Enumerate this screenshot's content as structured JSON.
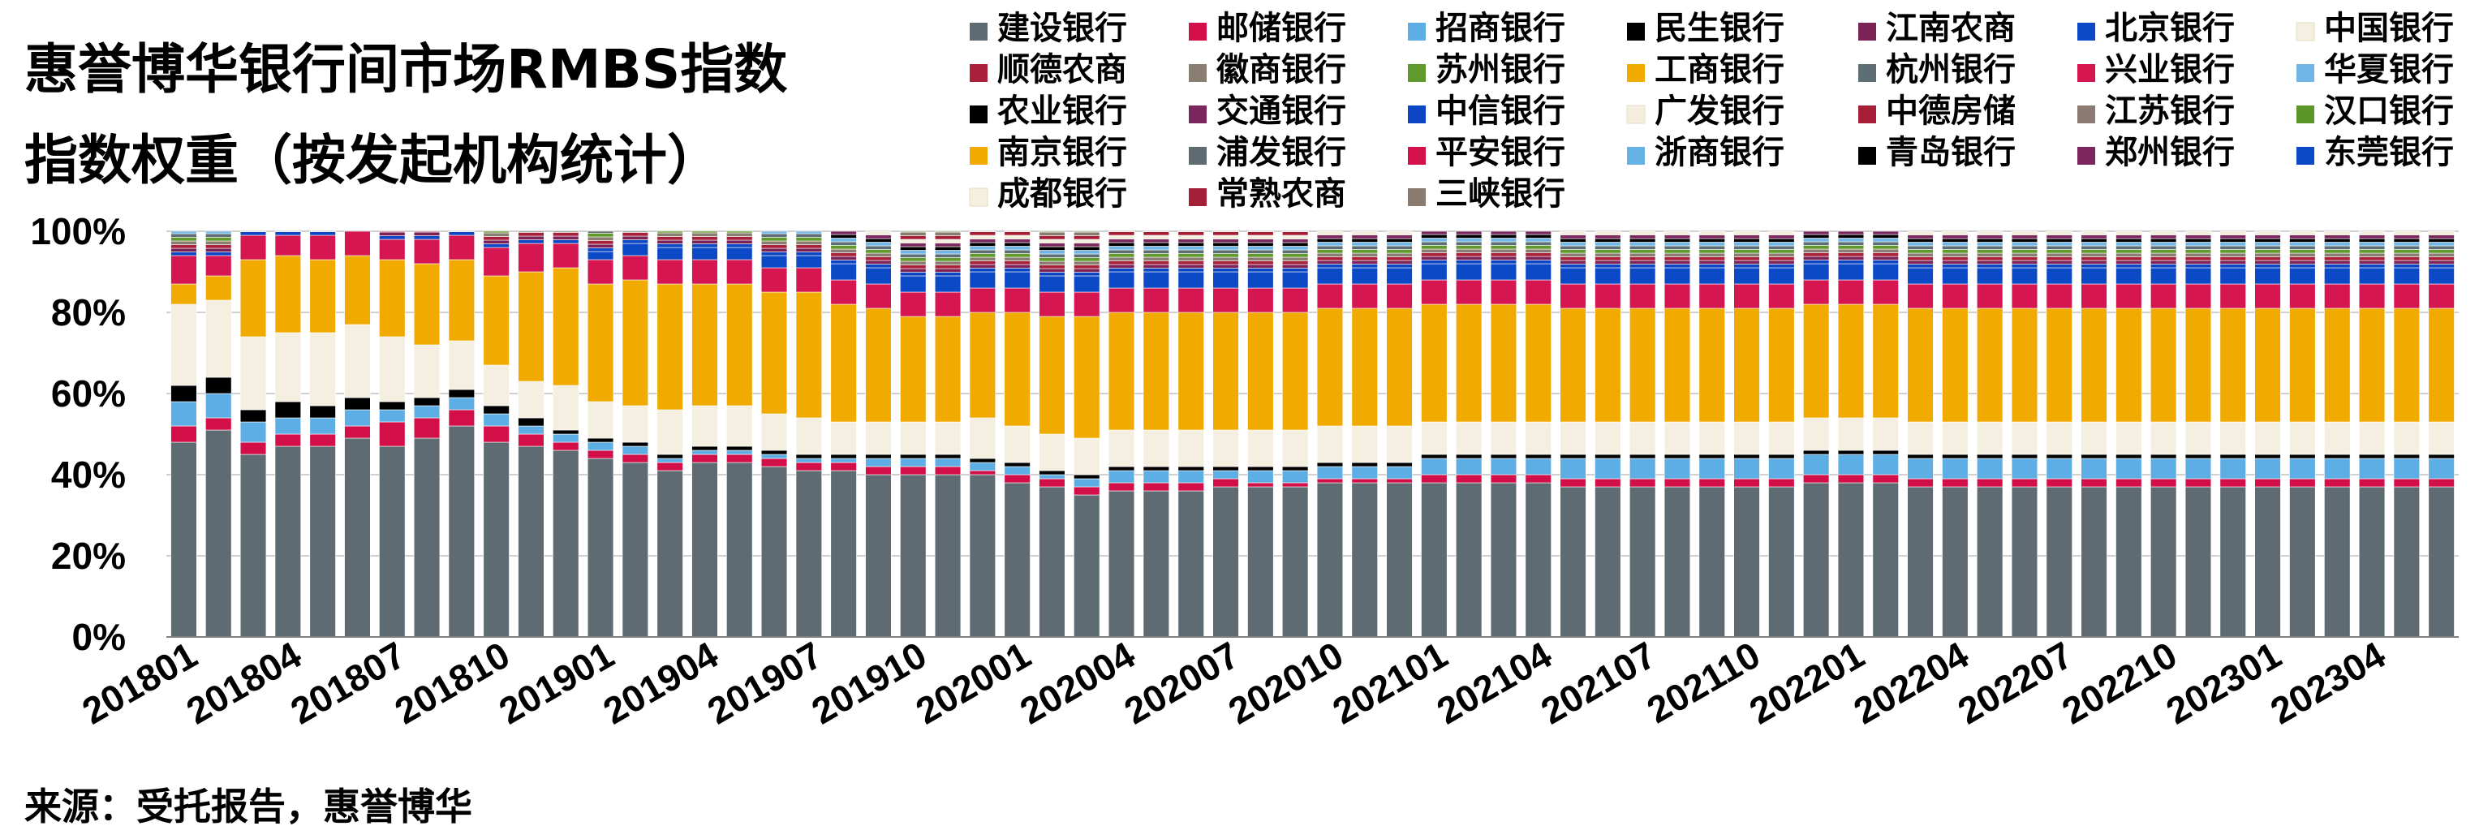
{
  "title_lines": [
    "惠誉博华银行间市场RMBS指数",
    "指数权重（按发起机构统计）"
  ],
  "source": "来源：受托报告，惠誉博华",
  "chart_data": {
    "type": "bar",
    "stacked": true,
    "ylim": [
      0,
      100
    ],
    "yticks": [
      "0%",
      "20%",
      "40%",
      "60%",
      "80%",
      "100%"
    ],
    "xtick_labels": [
      "201801",
      "201804",
      "201807",
      "201810",
      "201901",
      "201904",
      "201907",
      "201910",
      "202001",
      "202004",
      "202007",
      "202010",
      "202101",
      "202104",
      "202107",
      "202110",
      "202201",
      "202204",
      "202207",
      "202210",
      "202301",
      "202304"
    ],
    "grid": "horizontal",
    "legend_position": "top-right",
    "categories_count": 66,
    "series": [
      {
        "name": "建设银行",
        "color": "#5f6b72"
      },
      {
        "name": "邮储银行",
        "color": "#d20f49"
      },
      {
        "name": "招商银行",
        "color": "#5daee5"
      },
      {
        "name": "民生银行",
        "color": "#000000"
      },
      {
        "name": "江南农商",
        "color": "#7b2257"
      },
      {
        "name": "北京银行",
        "color": "#0b49c6"
      },
      {
        "name": "中国银行",
        "color": "#f5efe2"
      },
      {
        "name": "顺德农商",
        "color": "#a8203a"
      },
      {
        "name": "徽商银行",
        "color": "#8a7d72"
      },
      {
        "name": "苏州银行",
        "color": "#5f9a2a"
      },
      {
        "name": "工商银行",
        "color": "#f0aa00"
      },
      {
        "name": "杭州银行",
        "color": "#5e6e75"
      },
      {
        "name": "兴业银行",
        "color": "#d61650"
      },
      {
        "name": "华夏银行",
        "color": "#70b6e6"
      },
      {
        "name": "农业银行",
        "color": "#000000"
      },
      {
        "name": "交通银行",
        "color": "#7a275d"
      },
      {
        "name": "中信银行",
        "color": "#0c46c4"
      },
      {
        "name": "广发银行",
        "color": "#f4eedf"
      },
      {
        "name": "中德房储",
        "color": "#a51e36"
      },
      {
        "name": "江苏银行",
        "color": "#8b7b72"
      },
      {
        "name": "汉口银行",
        "color": "#5c9628"
      },
      {
        "name": "南京银行",
        "color": "#f0aa00"
      },
      {
        "name": "浦发银行",
        "color": "#5d6a70"
      },
      {
        "name": "平安银行",
        "color": "#d3124b"
      },
      {
        "name": "浙商银行",
        "color": "#65b2e5"
      },
      {
        "name": "青岛银行",
        "color": "#000000"
      },
      {
        "name": "郑州银行",
        "color": "#7d255c"
      },
      {
        "name": "东莞银行",
        "color": "#0a4ac9"
      },
      {
        "name": "成都银行",
        "color": "#f5efe0"
      },
      {
        "name": "常熟农商",
        "color": "#a31f37"
      },
      {
        "name": "三峡银行",
        "color": "#8a7b70"
      }
    ],
    "data_columns_note": "values per bar, stacked bottom-to-top: 建设, 邮储, 招商, 民生, 中国, 工商, 兴业, 中信/北京, remainder",
    "bars": [
      [
        48,
        4,
        6,
        4,
        20,
        5,
        7,
        0
      ],
      [
        51,
        3,
        6,
        4,
        19,
        6,
        5,
        0
      ],
      [
        45,
        3,
        5,
        3,
        18,
        19,
        6,
        0
      ],
      [
        47,
        3,
        4,
        4,
        17,
        19,
        5,
        0
      ],
      [
        47,
        3,
        4,
        3,
        18,
        18,
        6,
        0
      ],
      [
        49,
        3,
        4,
        3,
        18,
        17,
        6,
        0
      ],
      [
        47,
        6,
        3,
        2,
        16,
        19,
        5,
        0
      ],
      [
        49,
        5,
        3,
        2,
        13,
        20,
        6,
        0
      ],
      [
        52,
        4,
        3,
        2,
        12,
        20,
        6,
        0
      ],
      [
        48,
        4,
        3,
        2,
        10,
        22,
        7,
        0
      ],
      [
        47,
        3,
        2,
        2,
        9,
        27,
        7,
        0
      ],
      [
        46,
        2,
        2,
        1,
        11,
        29,
        6,
        0
      ],
      [
        44,
        2,
        2,
        1,
        9,
        29,
        6,
        2
      ],
      [
        43,
        2,
        2,
        1,
        9,
        31,
        6,
        3
      ],
      [
        41,
        2,
        1,
        1,
        11,
        31,
        6,
        3
      ],
      [
        43,
        2,
        1,
        1,
        10,
        30,
        6,
        3
      ],
      [
        43,
        2,
        1,
        1,
        10,
        30,
        6,
        3
      ],
      [
        42,
        2,
        1,
        1,
        9,
        30,
        6,
        3
      ],
      [
        41,
        2,
        1,
        1,
        9,
        31,
        6,
        3
      ],
      [
        41,
        2,
        1,
        1,
        8,
        29,
        6,
        4
      ],
      [
        40,
        2,
        2,
        1,
        8,
        28,
        6,
        4
      ],
      [
        40,
        2,
        2,
        1,
        8,
        26,
        6,
        4
      ],
      [
        40,
        2,
        2,
        1,
        8,
        26,
        6,
        4
      ],
      [
        40,
        1,
        2,
        1,
        10,
        26,
        6,
        4
      ],
      [
        38,
        2,
        2,
        1,
        9,
        28,
        6,
        4
      ],
      [
        37,
        2,
        1,
        1,
        9,
        29,
        6,
        4
      ],
      [
        35,
        2,
        2,
        1,
        9,
        30,
        6,
        4
      ],
      [
        36,
        2,
        3,
        1,
        9,
        29,
        6,
        4
      ],
      [
        36,
        2,
        3,
        1,
        9,
        29,
        6,
        4
      ],
      [
        36,
        2,
        3,
        1,
        9,
        29,
        6,
        4
      ],
      [
        37,
        2,
        2,
        1,
        9,
        29,
        6,
        4
      ],
      [
        37,
        1,
        3,
        1,
        9,
        29,
        6,
        4
      ],
      [
        37,
        1,
        3,
        1,
        9,
        29,
        6,
        4
      ],
      [
        38,
        1,
        3,
        1,
        9,
        29,
        6,
        4
      ],
      [
        38,
        1,
        3,
        1,
        9,
        29,
        6,
        4
      ],
      [
        38,
        1,
        3,
        1,
        9,
        29,
        6,
        4
      ],
      [
        38,
        2,
        4,
        1,
        8,
        29,
        6,
        4
      ],
      [
        38,
        2,
        4,
        1,
        8,
        29,
        6,
        4
      ],
      [
        38,
        2,
        4,
        1,
        8,
        29,
        6,
        4
      ],
      [
        38,
        2,
        4,
        1,
        8,
        29,
        6,
        4
      ],
      [
        37,
        2,
        5,
        1,
        8,
        28,
        6,
        4
      ],
      [
        37,
        2,
        5,
        1,
        8,
        28,
        6,
        4
      ],
      [
        37,
        2,
        5,
        1,
        8,
        28,
        6,
        4
      ],
      [
        37,
        2,
        5,
        1,
        8,
        28,
        6,
        4
      ],
      [
        37,
        2,
        5,
        1,
        8,
        28,
        6,
        4
      ],
      [
        37,
        2,
        5,
        1,
        8,
        28,
        6,
        4
      ],
      [
        37,
        2,
        5,
        1,
        8,
        28,
        6,
        4
      ],
      [
        38,
        2,
        5,
        1,
        8,
        28,
        6,
        4
      ],
      [
        38,
        2,
        5,
        1,
        8,
        28,
        6,
        4
      ],
      [
        38,
        2,
        5,
        1,
        8,
        28,
        6,
        4
      ],
      [
        37,
        2,
        5,
        1,
        8,
        28,
        6,
        4
      ],
      [
        37,
        2,
        5,
        1,
        8,
        28,
        6,
        4
      ],
      [
        37,
        2,
        5,
        1,
        8,
        28,
        6,
        4
      ],
      [
        37,
        2,
        5,
        1,
        8,
        28,
        6,
        4
      ],
      [
        37,
        2,
        5,
        1,
        8,
        28,
        6,
        4
      ],
      [
        37,
        2,
        5,
        1,
        8,
        28,
        6,
        4
      ],
      [
        37,
        2,
        5,
        1,
        8,
        28,
        6,
        4
      ],
      [
        37,
        2,
        5,
        1,
        8,
        28,
        6,
        4
      ],
      [
        37,
        2,
        5,
        1,
        8,
        28,
        6,
        4
      ],
      [
        37,
        2,
        5,
        1,
        8,
        28,
        6,
        4
      ],
      [
        37,
        2,
        5,
        1,
        8,
        28,
        6,
        4
      ],
      [
        37,
        2,
        5,
        1,
        8,
        28,
        6,
        4
      ],
      [
        37,
        2,
        5,
        1,
        8,
        28,
        6,
        4
      ],
      [
        37,
        2,
        5,
        1,
        8,
        28,
        6,
        4
      ],
      [
        37,
        2,
        5,
        1,
        8,
        28,
        6,
        4
      ],
      [
        37,
        2,
        5,
        1,
        8,
        28,
        6,
        4
      ]
    ]
  }
}
